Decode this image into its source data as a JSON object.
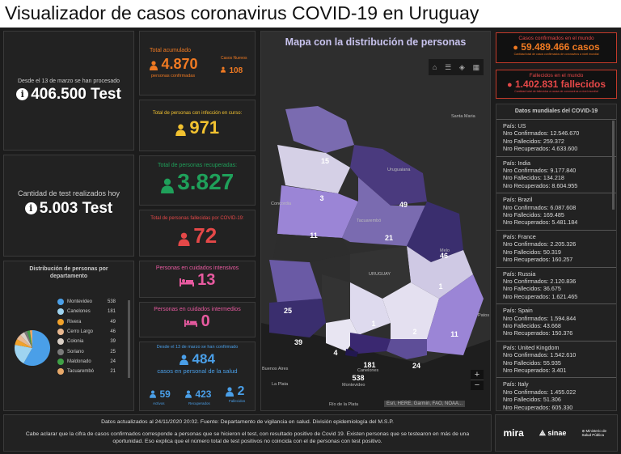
{
  "title": "Visualizador de casos coronavirus COVID-19 en Uruguay",
  "tests": {
    "since_label": "Desde el 13 de marzo se han procesado",
    "total": "406.500 Test",
    "today_label": "Cantidad de test realizados hoy",
    "today": "5.003 Test"
  },
  "cases": {
    "total_label": "Total acumulado",
    "total": "4.870",
    "total_sub": "personas confirmadas",
    "new_label": "Casos Nuevos",
    "new": "108",
    "active_label": "Total de personas con infección en curso:",
    "active": "971",
    "recovered_label": "Total de personas recuperadas:",
    "recovered": "3.827",
    "deaths_label": "Total de personas fallecidas por COVID-19:",
    "deaths": "72",
    "icu_label": "Personas en cuidados intensivos",
    "icu": "13",
    "intermediate_label": "Personas en cuidados intermedios",
    "intermediate": "0",
    "health_label": "Desde el 13 de marzo se han confirmado",
    "health": "484",
    "health_sub": "casos en personal de la salud",
    "health_active": "59",
    "health_active_label": "Activos",
    "health_recovered": "423",
    "health_recovered_label": "Recuperados",
    "health_deaths": "2",
    "health_deaths_label": "Fallecidos"
  },
  "distribution": {
    "title": "Distribución de personas por departamento",
    "items": [
      {
        "name": "Montevideo",
        "value": "538",
        "color": "#4a9fe8"
      },
      {
        "name": "Canelones",
        "value": "181",
        "color": "#9fd4f0"
      },
      {
        "name": "Rivera",
        "value": "49",
        "color": "#f2a22a"
      },
      {
        "name": "Cerro Largo",
        "value": "46",
        "color": "#e9b88f"
      },
      {
        "name": "Colonia",
        "value": "39",
        "color": "#d9cfc6"
      },
      {
        "name": "Soriano",
        "value": "25",
        "color": "#7a7a7a"
      },
      {
        "name": "Maldonado",
        "value": "24",
        "color": "#3fa046"
      },
      {
        "name": "Tacuarembó",
        "value": "21",
        "color": "#e8a96a"
      }
    ]
  },
  "map": {
    "title": "Mapa con la distribución de personas",
    "labels": [
      "15",
      "3",
      "49",
      "11",
      "21",
      "46",
      "1",
      "25",
      "1",
      "2",
      "11",
      "39",
      "4",
      "181",
      "24",
      "538"
    ],
    "places": [
      "Uruguaiana",
      "Santa Maria",
      "Concordia",
      "Tacuarembó",
      "URUGUAY",
      "Melo",
      "Montevideo",
      "La Plata",
      "Río de la Plata",
      "Buenos Aires",
      "Patos",
      "Canelones"
    ],
    "attribution": "Esri, HERE, Garmin, FAO, NOAA...",
    "zoom_in": "+",
    "zoom_out": "−"
  },
  "world": {
    "confirmed_label": "Casos confirmados en el mundo",
    "confirmed": "59.489.466 casos",
    "confirmed_note": "Cantidad total de casos confirmados de coronavirus a nivel mundial",
    "deaths_label": "Fallecidos en el mundo",
    "deaths": "1.402.831 fallecidos",
    "deaths_note": "Cantidad total de fallecidos a causa de coronavirus a nivel mundial",
    "data_title": "Datos mundiales del COVID-19",
    "countries": [
      {
        "name": "País: US",
        "confirmed": "Nro Confirmados: 12.546.670",
        "deaths": "Nro Fallecidos: 259.372",
        "recovered": "Nro Recuperados: 4.633.600"
      },
      {
        "name": "País: India",
        "confirmed": "Nro Confirmados: 9.177.840",
        "deaths": "Nro Fallecidos: 134.218",
        "recovered": "Nro Recuperados: 8.604.955"
      },
      {
        "name": "País: Brazil",
        "confirmed": "Nro Confirmados: 6.087.608",
        "deaths": "Nro Fallecidos: 169.485",
        "recovered": "Nro Recuperados: 5.481.184"
      },
      {
        "name": "País: France",
        "confirmed": "Nro Confirmados: 2.205.326",
        "deaths": "Nro Fallecidos: 50.319",
        "recovered": "Nro Recuperados: 160.257"
      },
      {
        "name": "País: Russia",
        "confirmed": "Nro Confirmados: 2.120.836",
        "deaths": "Nro Fallecidos: 36.675",
        "recovered": "Nro Recuperados: 1.621.465"
      },
      {
        "name": "País: Spain",
        "confirmed": "Nro Confirmados: 1.594.844",
        "deaths": "Nro Fallecidos: 43.668",
        "recovered": "Nro Recuperados: 150.376"
      },
      {
        "name": "País: United Kingdom",
        "confirmed": "Nro Confirmados: 1.542.610",
        "deaths": "Nro Fallecidos: 55.935",
        "recovered": "Nro Recuperados: 3.401"
      },
      {
        "name": "País: Italy",
        "confirmed": "Nro Confirmados: 1.455.022",
        "deaths": "Nro Fallecidos: 51.306",
        "recovered": "Nro Recuperados: 605.330"
      }
    ]
  },
  "footer": {
    "line1": "Datos actualizados al 24/11/2020 20:02. Fuente: Departamento de vigilancia en salud. División epidemiología del M.S.P.",
    "line2": "Cabe aclarar que la cifra de casos confirmados corresponde a personas que se hicieron el test, con resultado positivo de Covid 19. Existen personas que se testearon en más de una oportunidad. Eso explica que el número total de test positivos no coincida con el de personas con test positivo."
  },
  "logos": [
    "mira",
    "sinae",
    "Ministerio de Salud Pública"
  ],
  "colors": {
    "orange": "#f07a22",
    "yellow": "#f2c230",
    "green": "#1fa05a",
    "red": "#e54848",
    "pink": "#e85aa0",
    "blue": "#4a9fe8"
  }
}
